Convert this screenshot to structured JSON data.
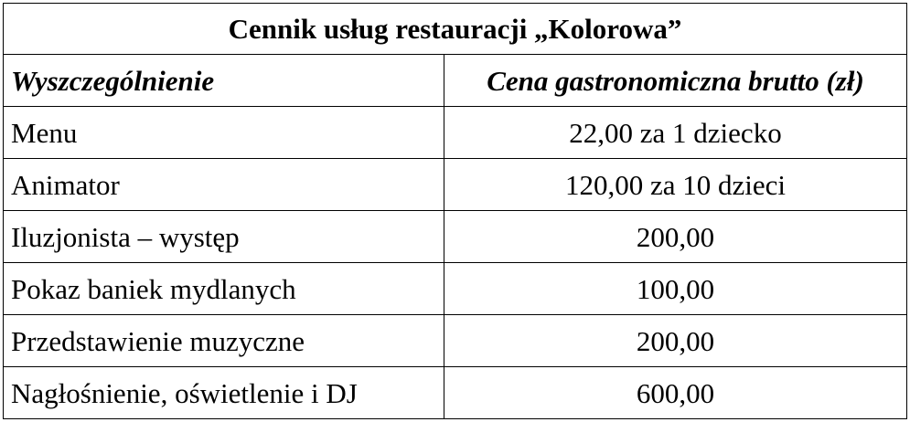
{
  "table": {
    "title": "Cennik usług restauracji „Kolorowa”",
    "headers": [
      "Wyszczególnienie",
      "Cena gastronomiczna brutto (zł)"
    ],
    "rows": [
      [
        "Menu",
        "22,00 za 1 dziecko"
      ],
      [
        "Animator",
        "120,00 za 10 dzieci"
      ],
      [
        "Iluzjonista – występ",
        "200,00"
      ],
      [
        "Pokaz baniek mydlanych",
        "100,00"
      ],
      [
        "Przedstawienie muzyczne",
        "200,00"
      ],
      [
        "Nagłośnienie, oświetlenie i DJ",
        "600,00"
      ]
    ]
  }
}
